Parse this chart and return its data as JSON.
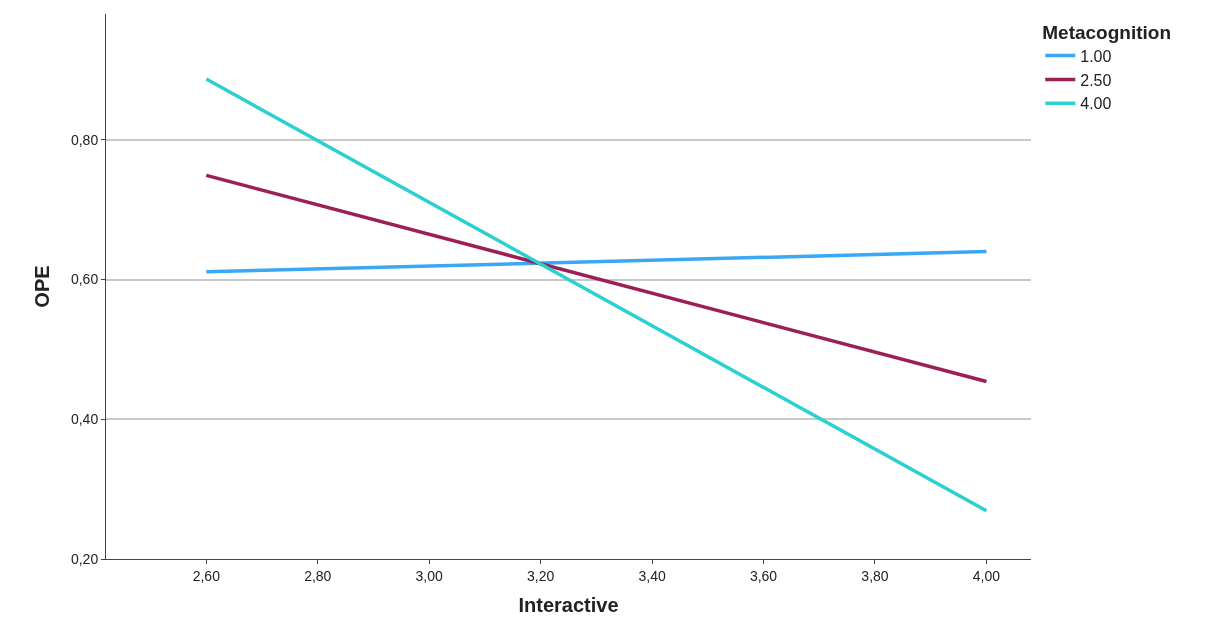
{
  "chart_data": {
    "type": "line",
    "xlabel": "Interactive",
    "ylabel": "OPE",
    "legend_title": "Metacognition",
    "legend": "top right",
    "grid": "y",
    "marker": "none",
    "line_style": "solid",
    "x": [
      2.6,
      4.0
    ],
    "series": [
      {
        "name": "1.00",
        "color": "#3aa8f5",
        "values": [
          0.611,
          0.64
        ]
      },
      {
        "name": "2.50",
        "color": "#9c1f55",
        "values": [
          0.749,
          0.454
        ]
      },
      {
        "name": "4.00",
        "color": "#2dd0d0",
        "values": [
          0.887,
          0.269
        ]
      }
    ],
    "xlim": [
      2.42,
      4.08
    ],
    "ylim": [
      0.2,
      0.98
    ],
    "xticks": [
      {
        "value": 2.6,
        "label": "2,60"
      },
      {
        "value": 2.8,
        "label": "2,80"
      },
      {
        "value": 3.0,
        "label": "3,00"
      },
      {
        "value": 3.2,
        "label": "3,20"
      },
      {
        "value": 3.4,
        "label": "3,40"
      },
      {
        "value": 3.6,
        "label": "3,60"
      },
      {
        "value": 3.8,
        "label": "3,80"
      },
      {
        "value": 4.0,
        "label": "4,00"
      }
    ],
    "yticks": [
      {
        "value": 0.2,
        "label": "0,20"
      },
      {
        "value": 0.4,
        "label": "0,40"
      },
      {
        "value": 0.6,
        "label": "0,60"
      },
      {
        "value": 0.8,
        "label": "0,80"
      }
    ]
  }
}
